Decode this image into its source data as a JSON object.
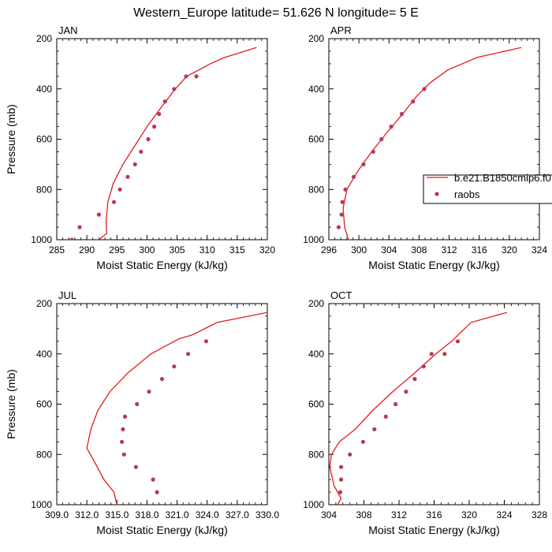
{
  "title": "Western_Europe  latitude= 51.626 N longitude= 5 E",
  "colors": {
    "model": "#e41a1c",
    "obs": "#b5395a",
    "axis": "#000000"
  },
  "legend": {
    "placement": "right",
    "model_label": "b.e21.B1850cmip6.f0",
    "obs_label": "raobs"
  },
  "chart_data": [
    {
      "type": "line",
      "panel_label": "JAN",
      "xlabel": "Moist Static Energy (kJ/kg)",
      "ylabel": "Pressure (mb)",
      "xlim": [
        285,
        320
      ],
      "ylim": [
        200,
        1000
      ],
      "y_inverted": true,
      "xticks": [
        "285",
        "290",
        "295",
        "300",
        "305",
        "310",
        "315",
        "320"
      ],
      "yticks": [
        "200",
        "400",
        "600",
        "800",
        "1000"
      ],
      "series": [
        {
          "name": "b.e21.B1850cmip6.f0",
          "kind": "line",
          "x": [
            292.0,
            293.3,
            293.2,
            293.5,
            294.4,
            296.0,
            298.0,
            300.0,
            302.3,
            304.7,
            306.6,
            308.6,
            310.5,
            312.9,
            318.2
          ],
          "y": [
            1000,
            975,
            925,
            850,
            775,
            700,
            625,
            550,
            475,
            400,
            350,
            325,
            300,
            275,
            235
          ]
        },
        {
          "name": "raobs",
          "kind": "markers",
          "x": [
            287.5,
            288.8,
            292.0,
            294.5,
            295.5,
            296.8,
            298.0,
            299.0,
            300.2,
            301.2,
            302.0,
            303.0,
            304.5,
            306.5,
            308.2
          ],
          "y": [
            1000,
            950,
            900,
            850,
            800,
            750,
            700,
            650,
            600,
            550,
            500,
            450,
            400,
            350,
            350
          ]
        }
      ]
    },
    {
      "type": "line",
      "panel_label": "APR",
      "xlabel": "Moist Static Energy (kJ/kg)",
      "ylabel": "",
      "xlim": [
        296,
        324
      ],
      "ylim": [
        200,
        1000
      ],
      "y_inverted": true,
      "xticks": [
        "296",
        "300",
        "304",
        "308",
        "312",
        "316",
        "320",
        "324"
      ],
      "yticks": [
        "200",
        "400",
        "600",
        "800",
        "1000"
      ],
      "series": [
        {
          "name": "b.e21.B1850cmip6.f0",
          "kind": "line",
          "x": [
            298.6,
            298.1,
            297.9,
            298.4,
            299.9,
            301.7,
            303.7,
            305.8,
            307.8,
            309.5,
            311.8,
            315.7,
            321.6
          ],
          "y": [
            1000,
            950,
            875,
            800,
            725,
            650,
            575,
            500,
            425,
            375,
            325,
            275,
            235
          ]
        },
        {
          "name": "raobs",
          "kind": "markers",
          "x": [
            297.3,
            297.7,
            297.8,
            298.2,
            299.3,
            300.6,
            301.9,
            303.0,
            304.3,
            305.7,
            307.2,
            308.7
          ],
          "y": [
            950,
            900,
            850,
            800,
            750,
            700,
            650,
            600,
            550,
            500,
            450,
            400
          ]
        }
      ]
    },
    {
      "type": "line",
      "panel_label": "JUL",
      "xlabel": "Moist Static Energy (kJ/kg)",
      "ylabel": "Pressure (mb)",
      "xlim": [
        309,
        330
      ],
      "ylim": [
        200,
        1000
      ],
      "y_inverted": true,
      "xticks": [
        "309.0",
        "312.0",
        "315.0",
        "318.0",
        "321.0",
        "324.0",
        "327.0",
        "330.0"
      ],
      "yticks": [
        "200",
        "400",
        "600",
        "800",
        "1000"
      ],
      "series": [
        {
          "name": "b.e21.B1850cmip6.f0",
          "kind": "line",
          "x": [
            315.0,
            314.7,
            313.7,
            312.7,
            312.0,
            312.4,
            313.1,
            314.3,
            316.1,
            318.4,
            321.2,
            322.5,
            325.0,
            330.0
          ],
          "y": [
            1000,
            950,
            900,
            825,
            775,
            700,
            625,
            550,
            475,
            400,
            340,
            325,
            275,
            235
          ]
        },
        {
          "name": "raobs",
          "kind": "markers",
          "x": [
            319.0,
            318.6,
            316.9,
            315.7,
            315.5,
            315.6,
            315.8,
            317.0,
            318.2,
            319.5,
            320.7,
            322.1,
            323.9
          ],
          "y": [
            950,
            900,
            850,
            800,
            750,
            700,
            650,
            600,
            550,
            500,
            450,
            400,
            350
          ]
        }
      ]
    },
    {
      "type": "line",
      "panel_label": "OCT",
      "xlabel": "Moist Static Energy (kJ/kg)",
      "ylabel": "",
      "xlim": [
        304,
        328
      ],
      "ylim": [
        200,
        1000
      ],
      "y_inverted": true,
      "xticks": [
        "304",
        "308",
        "312",
        "316",
        "320",
        "324",
        "328"
      ],
      "yticks": [
        "200",
        "400",
        "600",
        "800",
        "1000"
      ],
      "series": [
        {
          "name": "b.e21.B1850cmip6.f0",
          "kind": "line",
          "x": [
            305.0,
            305.4,
            304.6,
            304.1,
            304.3,
            305.2,
            307.0,
            309.0,
            311.3,
            313.8,
            316.2,
            318.0,
            320.2,
            324.3
          ],
          "y": [
            1000,
            975,
            925,
            850,
            800,
            750,
            700,
            625,
            550,
            475,
            400,
            350,
            275,
            235
          ]
        },
        {
          "name": "raobs",
          "kind": "markers",
          "x": [
            305.3,
            305.4,
            305.4,
            306.4,
            307.9,
            309.2,
            310.5,
            311.6,
            312.8,
            313.8,
            314.8,
            315.7,
            317.2,
            318.7
          ],
          "y": [
            950,
            900,
            850,
            800,
            750,
            700,
            650,
            600,
            550,
            500,
            450,
            400,
            400,
            350
          ]
        }
      ]
    }
  ]
}
